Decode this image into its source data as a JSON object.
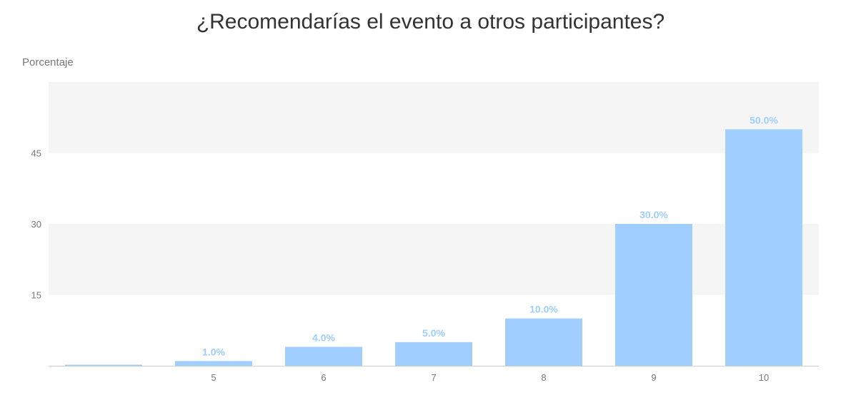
{
  "chart_data": {
    "type": "bar",
    "title": "¿Recomendarías el evento a otros participantes?",
    "ylabel": "Porcentaje",
    "xlabel": "",
    "categories": [
      "",
      "5",
      "6",
      "7",
      "8",
      "9",
      "10"
    ],
    "values": [
      0,
      1,
      4,
      5,
      10,
      30,
      50
    ],
    "data_labels": [
      "",
      "1.0%",
      "4.0%",
      "5.0%",
      "10.0%",
      "30.0%",
      "50.0%"
    ],
    "ylim": [
      0,
      60
    ],
    "yticks": [
      15,
      30,
      45
    ],
    "grid": "alternating horizontal bands",
    "legend": "none",
    "colors": {
      "bar": "#9fceff",
      "data_label": "#9fceff",
      "band": "#f5f5f5",
      "axis": "#cccccc"
    }
  }
}
